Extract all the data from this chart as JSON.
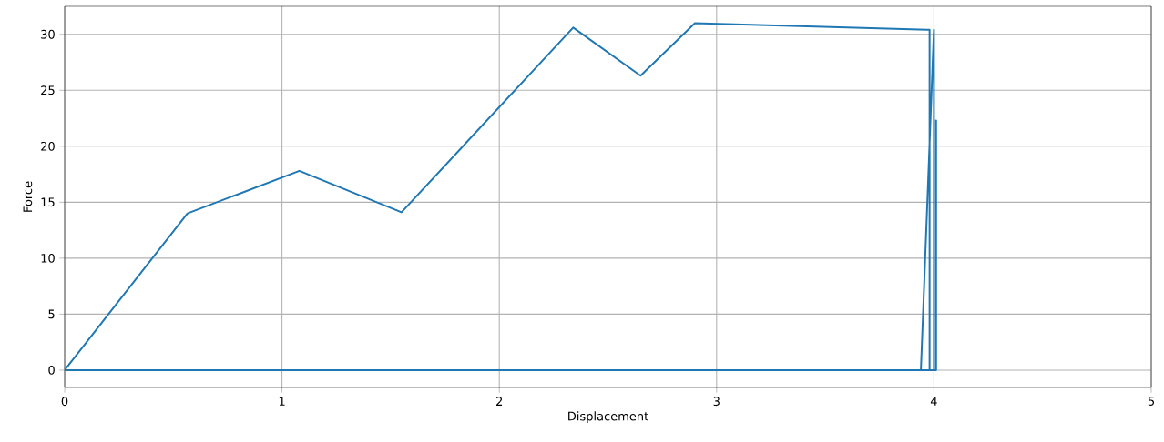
{
  "chart_data": {
    "type": "line",
    "xlabel": "Displacement",
    "ylabel": "Force",
    "xlim": [
      0,
      5
    ],
    "ylim": [
      -1.55,
      32.5
    ],
    "xticks": [
      0,
      1,
      2,
      3,
      4,
      5
    ],
    "yticks": [
      0,
      5,
      10,
      15,
      20,
      25,
      30
    ],
    "grid": true,
    "line_style": "solid",
    "marker": "none",
    "series": [
      {
        "color": "#1f77b4",
        "x": [
          0,
          0.565,
          1.08,
          1.55,
          2.34,
          2.65,
          2.9,
          3.98,
          3.98,
          3.88,
          3.94,
          4.0,
          4.0,
          4.01,
          4.01,
          4.01
        ],
        "values": [
          0,
          14,
          17.8,
          14.1,
          30.6,
          26.3,
          31,
          30.4,
          0,
          0,
          0,
          30.4,
          0,
          0,
          22.3,
          0
        ]
      },
      {
        "color": "#1f77b4",
        "x": [
          4.01,
          0
        ],
        "values": [
          0,
          0
        ]
      }
    ]
  }
}
